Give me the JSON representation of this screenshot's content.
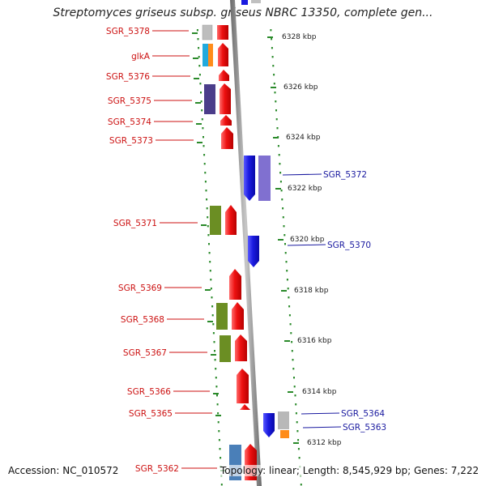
{
  "title": "Streptomyces griseus subsp. griseus NBRC 13350, complete gen...",
  "accession": "Accession: NC_010572",
  "topology": "Topology: linear; Length: 8,545,929 bp; Genes: 7,222",
  "scale_labels": [
    "6328 kbp",
    "6326 kbp",
    "6324 kbp",
    "6322 kbp",
    "6320 kbp",
    "6318 kbp",
    "6316 kbp",
    "6314 kbp",
    "6312 kbp"
  ],
  "genes_left": [
    {
      "label": "SGR_5378"
    },
    {
      "label": "glkA"
    },
    {
      "label": "SGR_5376"
    },
    {
      "label": "SGR_5375"
    },
    {
      "label": "SGR_5374"
    },
    {
      "label": "SGR_5373"
    },
    {
      "label": "SGR_5371"
    },
    {
      "label": "SGR_5369"
    },
    {
      "label": "SGR_5368"
    },
    {
      "label": "SGR_5367"
    },
    {
      "label": "SGR_5366"
    },
    {
      "label": "SGR_5365"
    },
    {
      "label": "SGR_5362"
    }
  ],
  "genes_right": [
    {
      "label": "SGR_5372"
    },
    {
      "label": "SGR_5370"
    },
    {
      "label": "SGR_5364"
    },
    {
      "label": "SGR_5363"
    }
  ],
  "colors": {
    "forward_gene": "#ee1111",
    "reverse_gene": "#1a1ae0",
    "left_label": "#cc1111",
    "right_label": "#1a1aa0",
    "dots": "#2a8a2a",
    "backbone": "#8a8a8a",
    "lavender": "#8070d0",
    "olive": "#6b8e23",
    "navy_purple": "#4b3d8a",
    "cyan": "#22aadd",
    "orange": "#ff8c1a",
    "gray": "#b0b0b0",
    "steel_blue": "#4a7fb8"
  }
}
